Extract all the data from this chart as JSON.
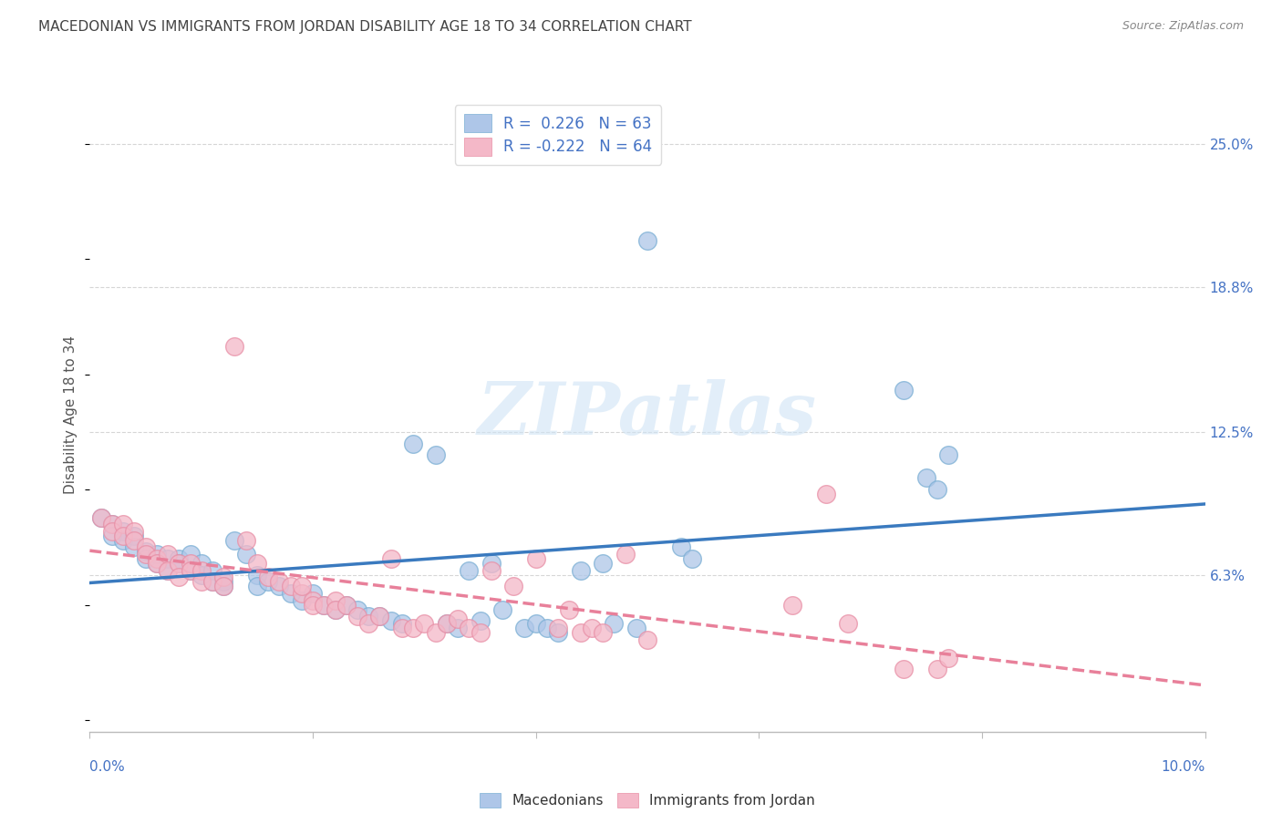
{
  "title": "MACEDONIAN VS IMMIGRANTS FROM JORDAN DISABILITY AGE 18 TO 34 CORRELATION CHART",
  "source": "Source: ZipAtlas.com",
  "ylabel": "Disability Age 18 to 34",
  "ytick_labels": [
    "6.3%",
    "12.5%",
    "18.8%",
    "25.0%"
  ],
  "ytick_values": [
    0.063,
    0.125,
    0.188,
    0.25
  ],
  "xlim": [
    0.0,
    0.1
  ],
  "ylim": [
    -0.005,
    0.27
  ],
  "blue_R": 0.226,
  "blue_N": 63,
  "pink_R": -0.222,
  "pink_N": 64,
  "blue_color": "#aec6e8",
  "pink_color": "#f4b8c8",
  "blue_edge_color": "#7bafd4",
  "pink_edge_color": "#e88fa6",
  "blue_line_color": "#3a7abf",
  "pink_line_color": "#e8809a",
  "legend_text_color": "#4472c4",
  "blue_scatter": [
    [
      0.001,
      0.088
    ],
    [
      0.002,
      0.085
    ],
    [
      0.002,
      0.08
    ],
    [
      0.003,
      0.082
    ],
    [
      0.003,
      0.078
    ],
    [
      0.004,
      0.08
    ],
    [
      0.004,
      0.075
    ],
    [
      0.005,
      0.073
    ],
    [
      0.005,
      0.07
    ],
    [
      0.006,
      0.072
    ],
    [
      0.006,
      0.068
    ],
    [
      0.007,
      0.07
    ],
    [
      0.007,
      0.065
    ],
    [
      0.008,
      0.07
    ],
    [
      0.008,
      0.068
    ],
    [
      0.009,
      0.072
    ],
    [
      0.009,
      0.065
    ],
    [
      0.01,
      0.068
    ],
    [
      0.01,
      0.063
    ],
    [
      0.011,
      0.065
    ],
    [
      0.011,
      0.06
    ],
    [
      0.012,
      0.06
    ],
    [
      0.012,
      0.058
    ],
    [
      0.013,
      0.078
    ],
    [
      0.014,
      0.072
    ],
    [
      0.015,
      0.063
    ],
    [
      0.015,
      0.058
    ],
    [
      0.016,
      0.06
    ],
    [
      0.017,
      0.058
    ],
    [
      0.018,
      0.055
    ],
    [
      0.019,
      0.052
    ],
    [
      0.02,
      0.055
    ],
    [
      0.021,
      0.05
    ],
    [
      0.022,
      0.048
    ],
    [
      0.023,
      0.05
    ],
    [
      0.024,
      0.048
    ],
    [
      0.025,
      0.045
    ],
    [
      0.026,
      0.045
    ],
    [
      0.027,
      0.043
    ],
    [
      0.028,
      0.042
    ],
    [
      0.029,
      0.12
    ],
    [
      0.031,
      0.115
    ],
    [
      0.032,
      0.042
    ],
    [
      0.033,
      0.04
    ],
    [
      0.034,
      0.065
    ],
    [
      0.035,
      0.043
    ],
    [
      0.036,
      0.068
    ],
    [
      0.037,
      0.048
    ],
    [
      0.039,
      0.04
    ],
    [
      0.04,
      0.042
    ],
    [
      0.041,
      0.04
    ],
    [
      0.042,
      0.038
    ],
    [
      0.044,
      0.065
    ],
    [
      0.046,
      0.068
    ],
    [
      0.047,
      0.042
    ],
    [
      0.049,
      0.04
    ],
    [
      0.05,
      0.208
    ],
    [
      0.053,
      0.075
    ],
    [
      0.054,
      0.07
    ],
    [
      0.073,
      0.143
    ],
    [
      0.075,
      0.105
    ],
    [
      0.076,
      0.1
    ],
    [
      0.077,
      0.115
    ]
  ],
  "pink_scatter": [
    [
      0.001,
      0.088
    ],
    [
      0.002,
      0.085
    ],
    [
      0.002,
      0.082
    ],
    [
      0.003,
      0.085
    ],
    [
      0.003,
      0.08
    ],
    [
      0.004,
      0.082
    ],
    [
      0.004,
      0.078
    ],
    [
      0.005,
      0.075
    ],
    [
      0.005,
      0.072
    ],
    [
      0.006,
      0.07
    ],
    [
      0.006,
      0.068
    ],
    [
      0.007,
      0.072
    ],
    [
      0.007,
      0.065
    ],
    [
      0.008,
      0.068
    ],
    [
      0.008,
      0.062
    ],
    [
      0.009,
      0.068
    ],
    [
      0.009,
      0.065
    ],
    [
      0.01,
      0.065
    ],
    [
      0.01,
      0.06
    ],
    [
      0.011,
      0.06
    ],
    [
      0.012,
      0.062
    ],
    [
      0.012,
      0.058
    ],
    [
      0.013,
      0.162
    ],
    [
      0.014,
      0.078
    ],
    [
      0.015,
      0.068
    ],
    [
      0.016,
      0.062
    ],
    [
      0.017,
      0.06
    ],
    [
      0.018,
      0.058
    ],
    [
      0.019,
      0.055
    ],
    [
      0.019,
      0.058
    ],
    [
      0.02,
      0.052
    ],
    [
      0.02,
      0.05
    ],
    [
      0.021,
      0.05
    ],
    [
      0.022,
      0.052
    ],
    [
      0.022,
      0.048
    ],
    [
      0.023,
      0.05
    ],
    [
      0.024,
      0.045
    ],
    [
      0.025,
      0.042
    ],
    [
      0.026,
      0.045
    ],
    [
      0.027,
      0.07
    ],
    [
      0.028,
      0.04
    ],
    [
      0.029,
      0.04
    ],
    [
      0.03,
      0.042
    ],
    [
      0.031,
      0.038
    ],
    [
      0.032,
      0.042
    ],
    [
      0.033,
      0.044
    ],
    [
      0.034,
      0.04
    ],
    [
      0.035,
      0.038
    ],
    [
      0.036,
      0.065
    ],
    [
      0.038,
      0.058
    ],
    [
      0.04,
      0.07
    ],
    [
      0.042,
      0.04
    ],
    [
      0.043,
      0.048
    ],
    [
      0.044,
      0.038
    ],
    [
      0.045,
      0.04
    ],
    [
      0.046,
      0.038
    ],
    [
      0.048,
      0.072
    ],
    [
      0.05,
      0.035
    ],
    [
      0.063,
      0.05
    ],
    [
      0.066,
      0.098
    ],
    [
      0.068,
      0.042
    ],
    [
      0.073,
      0.022
    ],
    [
      0.076,
      0.022
    ],
    [
      0.077,
      0.027
    ]
  ],
  "background_color": "#ffffff",
  "grid_color": "#cccccc",
  "title_color": "#444444",
  "axis_label_color": "#4472c4",
  "source_color": "#888888"
}
